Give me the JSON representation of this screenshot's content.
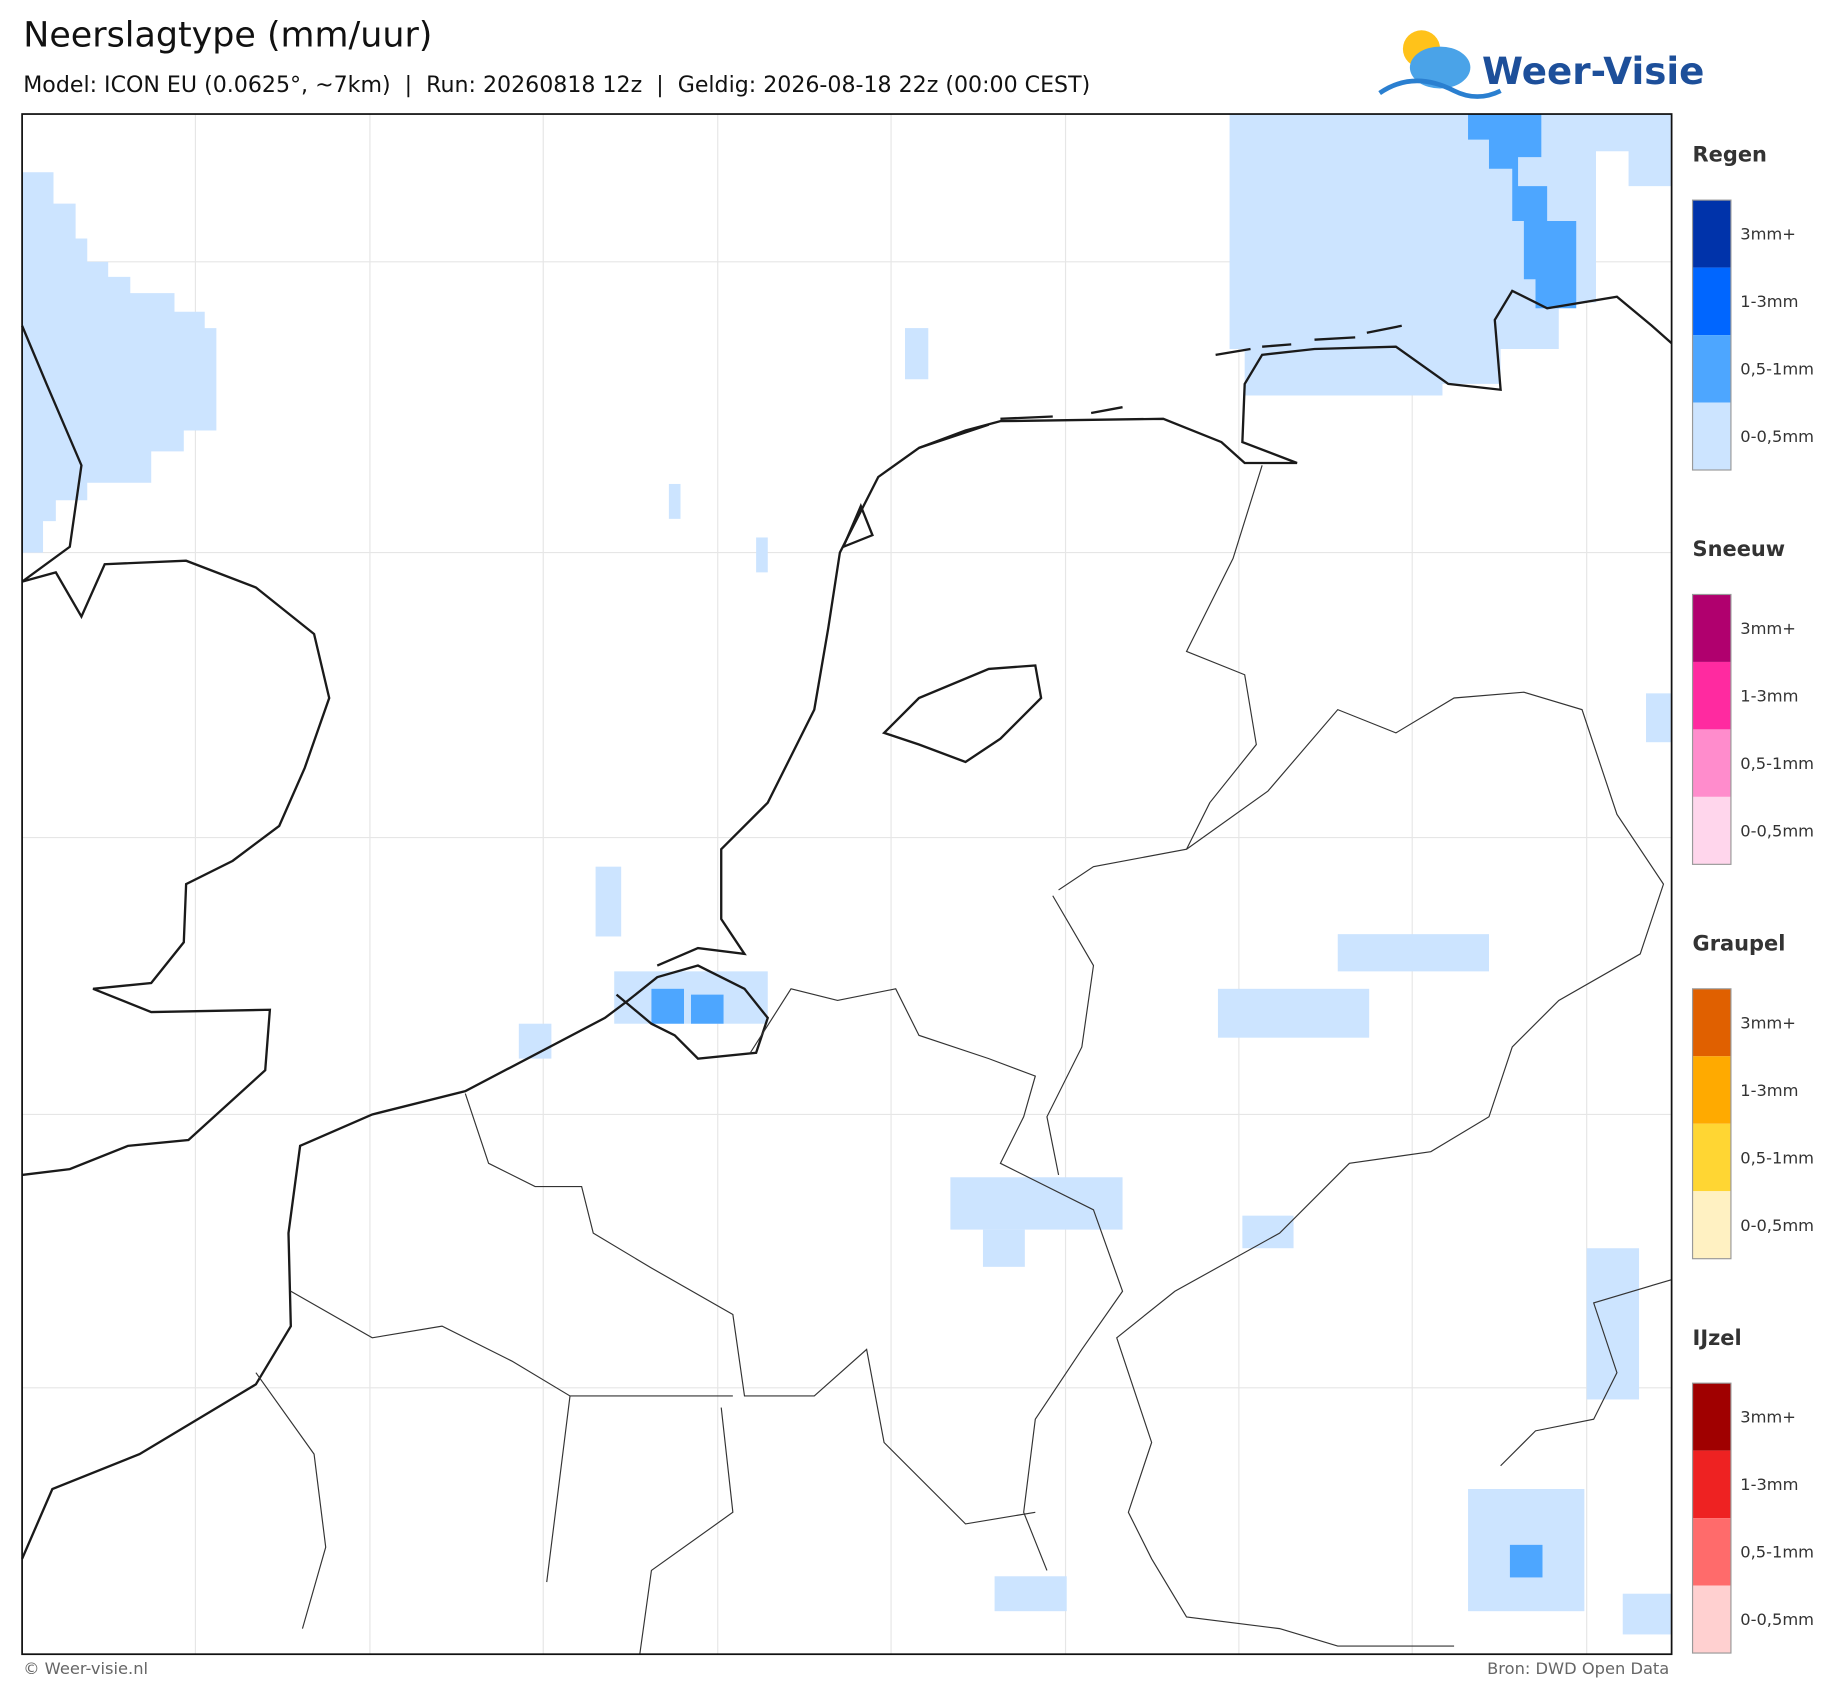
{
  "header": {
    "title": "Neerslagtype (mm/uur)",
    "subtitle": "Model: ICON EU (0.0625°, ~7km)  |  Run: 20260818 12z  |  Geldig: 2026-08-18 22z (00:00 CEST)"
  },
  "logo": {
    "text": "Weer-Visie"
  },
  "legend": [
    {
      "title": "Regen",
      "items": [
        {
          "label": "3mm+",
          "color": "#0033aa"
        },
        {
          "label": "1-3mm",
          "color": "#0066ff"
        },
        {
          "label": "0,5-1mm",
          "color": "#4da6ff"
        },
        {
          "label": "0-0,5mm",
          "color": "#cce4ff"
        }
      ]
    },
    {
      "title": "Sneeuw",
      "items": [
        {
          "label": "3mm+",
          "color": "#b0006e"
        },
        {
          "label": "1-3mm",
          "color": "#ff2aa0"
        },
        {
          "label": "0,5-1mm",
          "color": "#ff8ccc"
        },
        {
          "label": "0-0,5mm",
          "color": "#ffd6ec"
        }
      ]
    },
    {
      "title": "Graupel",
      "items": [
        {
          "label": "3mm+",
          "color": "#e06000"
        },
        {
          "label": "1-3mm",
          "color": "#ffaa00"
        },
        {
          "label": "0,5-1mm",
          "color": "#ffd633"
        },
        {
          "label": "0-0,5mm",
          "color": "#fff1c2"
        }
      ]
    },
    {
      "title": "IJzel",
      "items": [
        {
          "label": "3mm+",
          "color": "#a00000"
        },
        {
          "label": "1-3mm",
          "color": "#ee2222"
        },
        {
          "label": "0,5-1mm",
          "color": "#ff6b6b"
        },
        {
          "label": "0-0,5mm",
          "color": "#ffd0d0"
        }
      ]
    }
  ],
  "footer": {
    "left": "© Weer-visie.nl",
    "right": "Bron: DWD Open Data"
  }
}
